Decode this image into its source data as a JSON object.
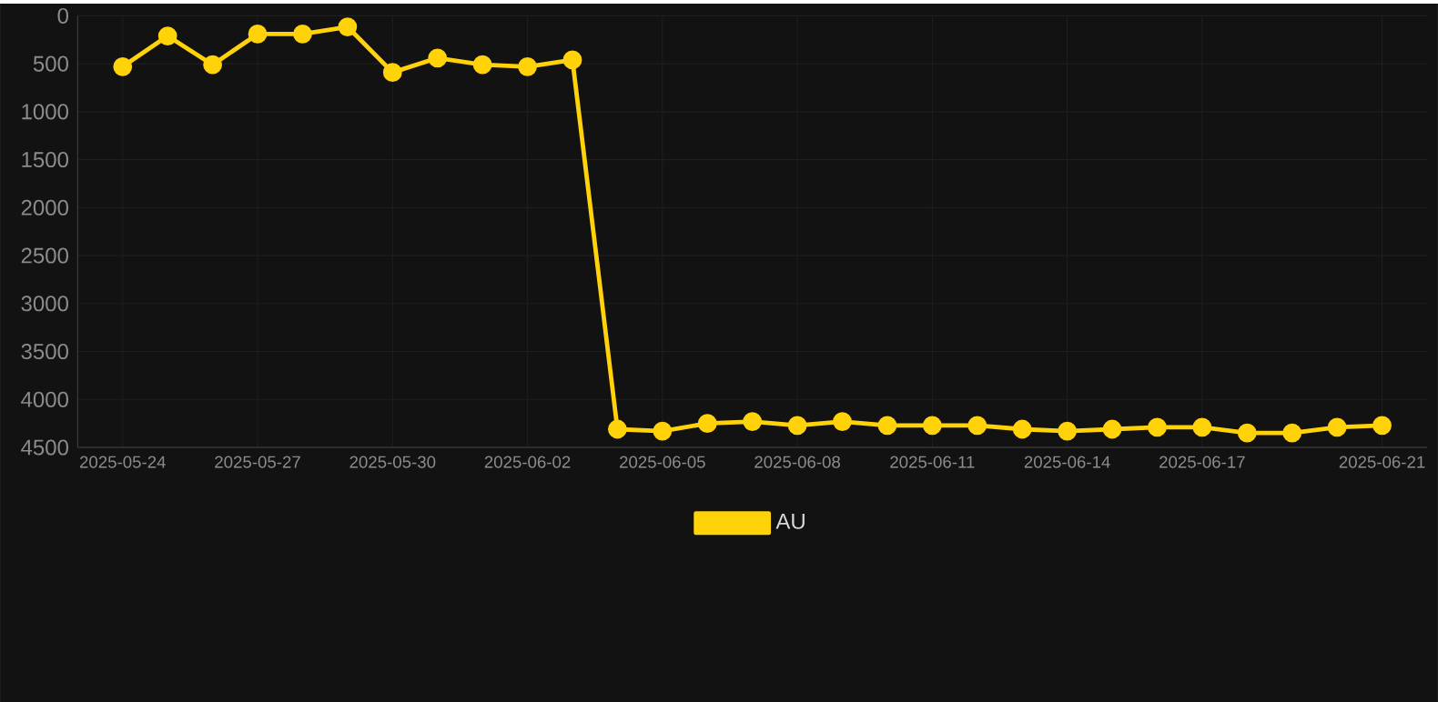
{
  "chart_data": {
    "type": "line",
    "x": [
      "2025-05-24",
      "2025-05-25",
      "2025-05-26",
      "2025-05-27",
      "2025-05-28",
      "2025-05-29",
      "2025-05-30",
      "2025-05-31",
      "2025-06-01",
      "2025-06-02",
      "2025-06-03",
      "2025-06-04",
      "2025-06-05",
      "2025-06-06",
      "2025-06-07",
      "2025-06-08",
      "2025-06-09",
      "2025-06-10",
      "2025-06-11",
      "2025-06-12",
      "2025-06-13",
      "2025-06-14",
      "2025-06-15",
      "2025-06-16",
      "2025-06-17",
      "2025-06-18",
      "2025-06-19",
      "2025-06-20",
      "2025-06-21"
    ],
    "series": [
      {
        "name": "AU",
        "color": "#ffd20a",
        "values": [
          530,
          210,
          510,
          190,
          190,
          115,
          590,
          440,
          510,
          530,
          460,
          4310,
          4330,
          4250,
          4230,
          4270,
          4230,
          4270,
          4270,
          4270,
          4310,
          4330,
          4310,
          4290,
          4290,
          4350,
          4350,
          4290,
          4270
        ]
      }
    ],
    "xlim": [
      "2025-05-23",
      "2025-06-22"
    ],
    "xticks": [
      "2025-05-24",
      "2025-05-27",
      "2025-05-30",
      "2025-06-02",
      "2025-06-05",
      "2025-06-08",
      "2025-06-11",
      "2025-06-14",
      "2025-06-17",
      "2025-06-21"
    ],
    "ylim": [
      4500,
      0
    ],
    "yticks": [
      0,
      500,
      1000,
      1500,
      2000,
      2500,
      3000,
      3500,
      4000,
      4500
    ],
    "grid": true,
    "legend": "bottom",
    "marker": "circle",
    "line_style": "solid"
  }
}
